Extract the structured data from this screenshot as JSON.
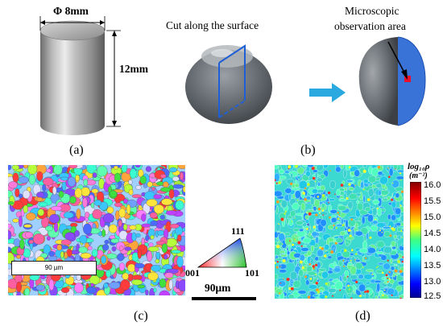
{
  "panel_a": {
    "diameter_label": "Φ 8mm",
    "height_label": "12mm",
    "caption": "(a)"
  },
  "panel_b": {
    "cut_label": "Cut along the surface",
    "observation_label_line1": "Microscopic",
    "observation_label_line2": "observation area",
    "caption": "(b)"
  },
  "panel_c": {
    "scalebar_inner_label": "90 µm",
    "ipf_top": "111",
    "ipf_left": "001",
    "ipf_right": "101",
    "scalebar_label": "90μm",
    "caption": "(c)"
  },
  "panel_d": {
    "colorbar_title": "log₁₀ρ",
    "colorbar_unit": "(m⁻²)",
    "ticks": [
      "16.0",
      "15.5",
      "15.0",
      "14.5",
      "14.0",
      "13.5",
      "13.0",
      "12.5"
    ],
    "caption": "(d)"
  },
  "colors": {
    "arrow": "#29a9e0",
    "plane": "#1f5fd6",
    "cut_face": "#3a73d8",
    "observation_square": "#e8102a",
    "sample_gray": "#6b7077"
  }
}
